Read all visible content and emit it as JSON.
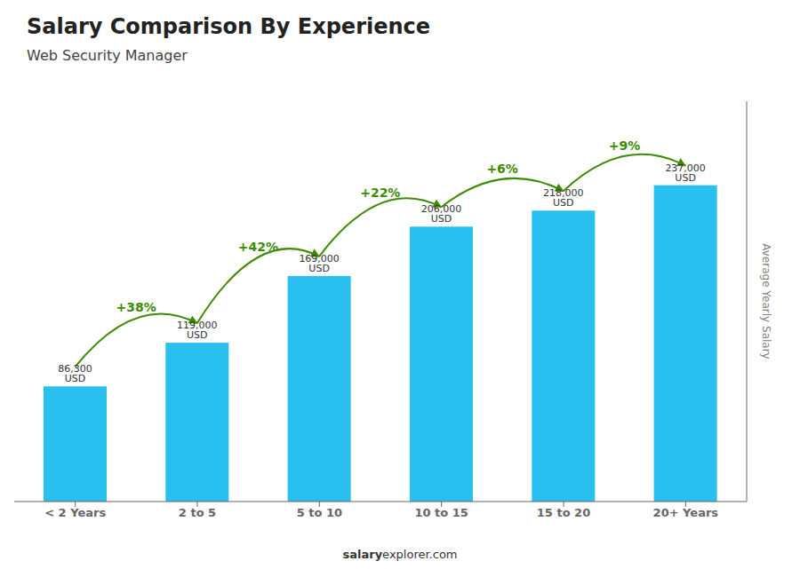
{
  "chart_data": {
    "type": "bar",
    "title": "Salary Comparison By Experience",
    "subtitle": "Web Security Manager",
    "categories": [
      "< 2 Years",
      "2 to 5",
      "5 to 10",
      "10 to 15",
      "15 to 20",
      "20+ Years"
    ],
    "values": [
      86300,
      119000,
      169000,
      206000,
      218000,
      237000
    ],
    "value_labels": [
      "86,300 USD",
      "119,000 USD",
      "169,000 USD",
      "206,000 USD",
      "218,000 USD",
      "237,000 USD"
    ],
    "data_labels": true,
    "color": "#29BFEE",
    "ylim": [
      0,
      300000
    ],
    "ylabel": "Average Yearly Salary",
    "tick_labels": "x",
    "grid": false,
    "annotations": [
      "+38%",
      "+42%",
      "+22%",
      "+6%",
      "+9%"
    ],
    "footer": [
      "salary",
      "explorer.com"
    ]
  }
}
